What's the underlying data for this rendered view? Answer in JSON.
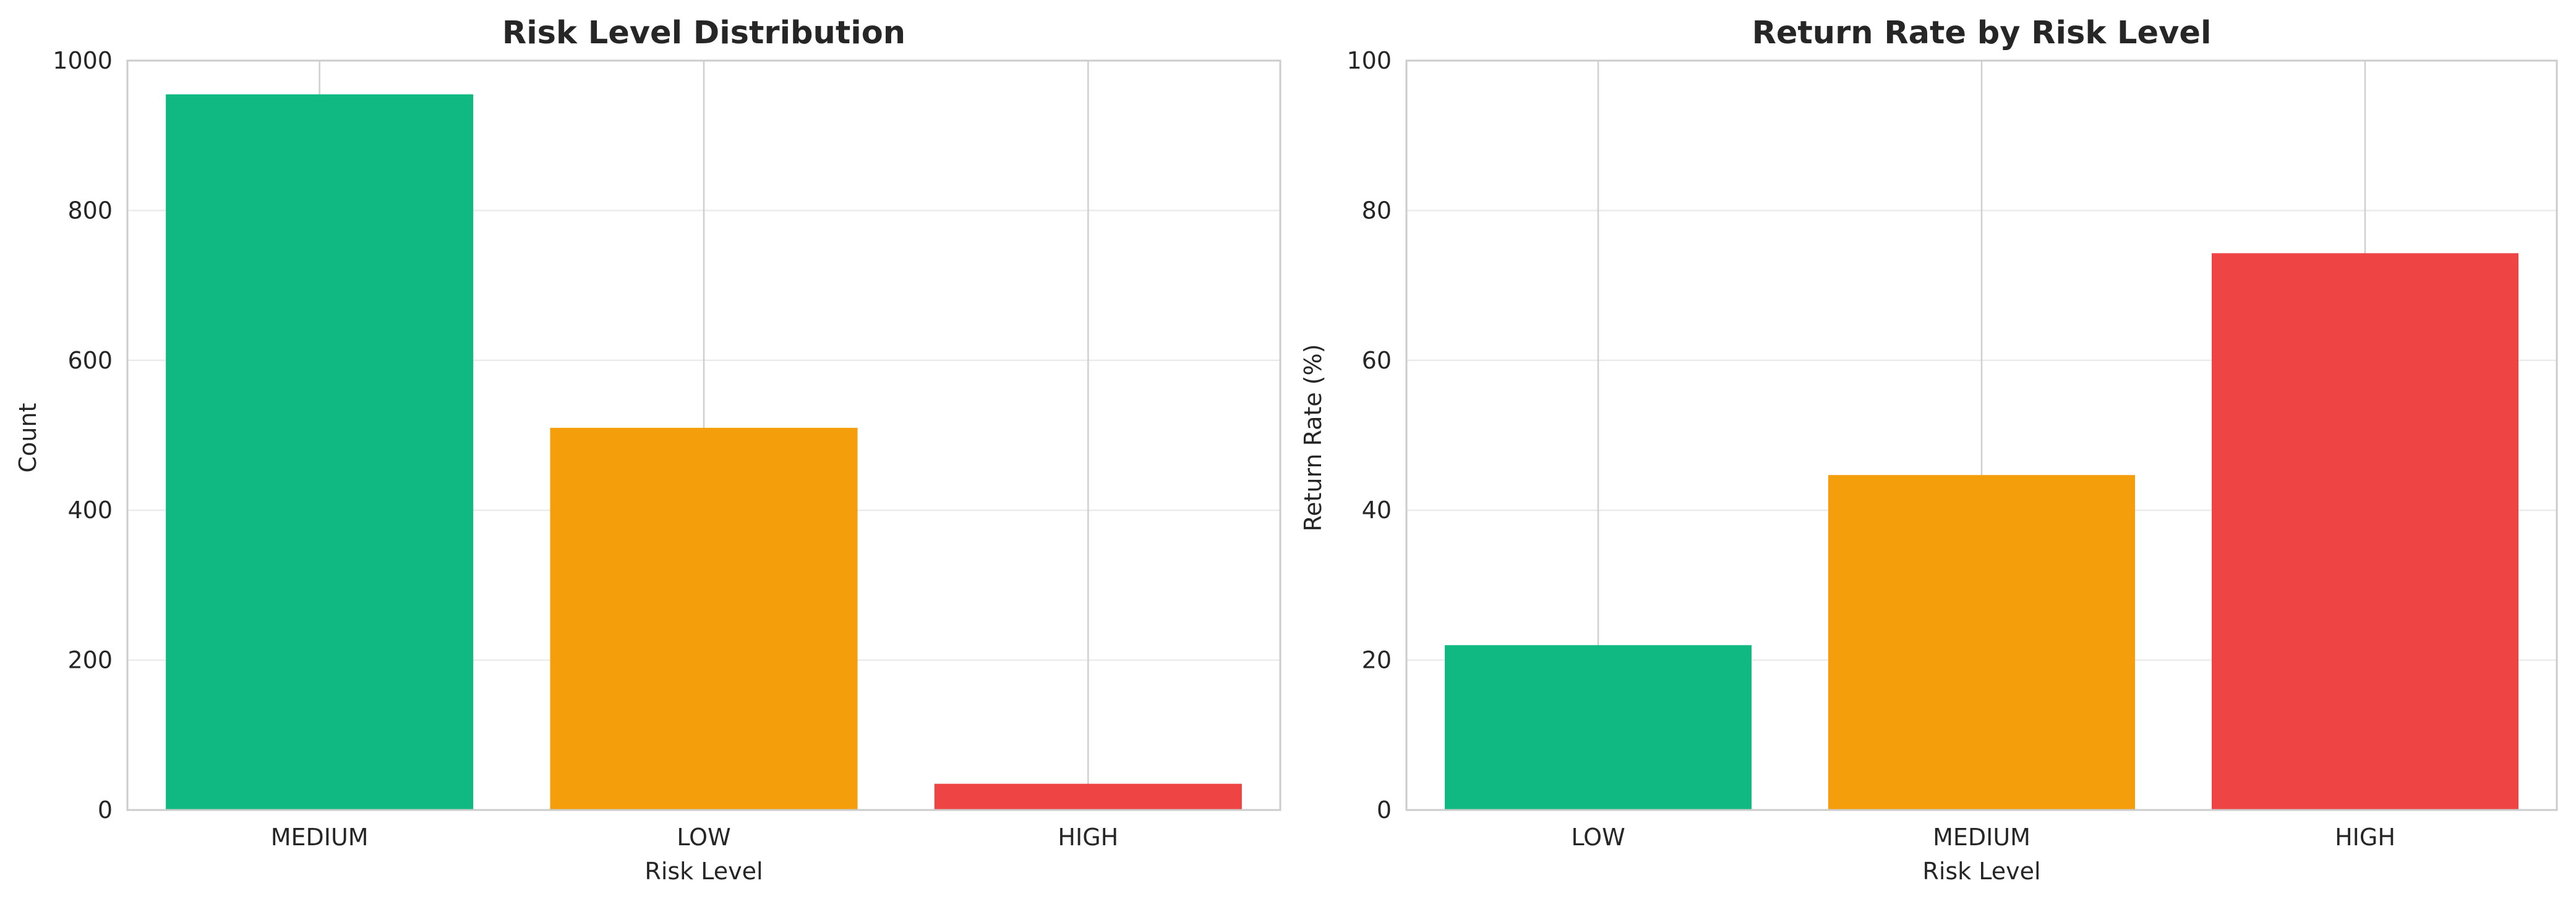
{
  "chart_data": [
    {
      "type": "bar",
      "title": "Risk Level Distribution",
      "xlabel": "Risk Level",
      "ylabel": "Count",
      "categories": [
        "MEDIUM",
        "LOW",
        "HIGH"
      ],
      "values": [
        955,
        510,
        35
      ],
      "colors": [
        "#10b981",
        "#f59e0b",
        "#ef4444"
      ],
      "ylim": [
        0,
        1000
      ],
      "yticks": [
        0,
        200,
        400,
        600,
        800,
        1000
      ],
      "grid": true,
      "legend": "none"
    },
    {
      "type": "bar",
      "title": "Return Rate by Risk Level",
      "xlabel": "Risk Level",
      "ylabel": "Return Rate (%)",
      "categories": [
        "LOW",
        "MEDIUM",
        "HIGH"
      ],
      "values": [
        22,
        44.7,
        74.3
      ],
      "colors": [
        "#10b981",
        "#f59e0b",
        "#ef4444"
      ],
      "ylim": [
        0,
        100
      ],
      "yticks": [
        0,
        20,
        40,
        60,
        80,
        100
      ],
      "grid": true,
      "legend": "none"
    }
  ]
}
